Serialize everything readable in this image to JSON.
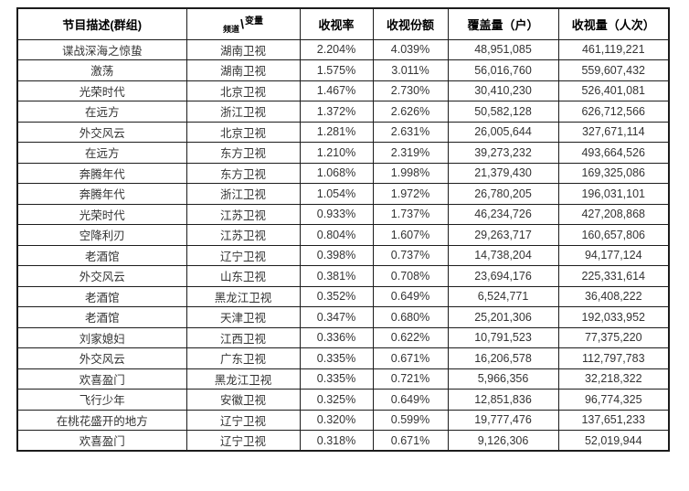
{
  "colors": {
    "background": "#ffffff",
    "border": "#1c1c1c",
    "header_text": "#000000",
    "body_text": "#333333"
  },
  "table": {
    "headers": {
      "program": "节目描述(群组)",
      "channel": "频道",
      "separator": "\\",
      "variable": "变量",
      "rating": "收视率",
      "share": "收视份额",
      "coverage": "覆盖量（户）",
      "viewership": "收视量（人次）"
    },
    "rows": [
      {
        "program": "谍战深海之惊蛰",
        "channel": "湖南卫视",
        "rating": "2.204%",
        "share": "4.039%",
        "coverage": "48,951,085",
        "viewership": "461,119,221"
      },
      {
        "program": "激荡",
        "channel": "湖南卫视",
        "rating": "1.575%",
        "share": "3.011%",
        "coverage": "56,016,760",
        "viewership": "559,607,432"
      },
      {
        "program": "光荣时代",
        "channel": "北京卫视",
        "rating": "1.467%",
        "share": "2.730%",
        "coverage": "30,410,230",
        "viewership": "526,401,081"
      },
      {
        "program": "在远方",
        "channel": "浙江卫视",
        "rating": "1.372%",
        "share": "2.626%",
        "coverage": "50,582,128",
        "viewership": "626,712,566"
      },
      {
        "program": "外交风云",
        "channel": "北京卫视",
        "rating": "1.281%",
        "share": "2.631%",
        "coverage": "26,005,644",
        "viewership": "327,671,114"
      },
      {
        "program": "在远方",
        "channel": "东方卫视",
        "rating": "1.210%",
        "share": "2.319%",
        "coverage": "39,273,232",
        "viewership": "493,664,526"
      },
      {
        "program": "奔腾年代",
        "channel": "东方卫视",
        "rating": "1.068%",
        "share": "1.998%",
        "coverage": "21,379,430",
        "viewership": "169,325,086"
      },
      {
        "program": "奔腾年代",
        "channel": "浙江卫视",
        "rating": "1.054%",
        "share": "1.972%",
        "coverage": "26,780,205",
        "viewership": "196,031,101"
      },
      {
        "program": "光荣时代",
        "channel": "江苏卫视",
        "rating": "0.933%",
        "share": "1.737%",
        "coverage": "46,234,726",
        "viewership": "427,208,868"
      },
      {
        "program": "空降利刃",
        "channel": "江苏卫视",
        "rating": "0.804%",
        "share": "1.607%",
        "coverage": "29,263,717",
        "viewership": "160,657,806"
      },
      {
        "program": "老酒馆",
        "channel": "辽宁卫视",
        "rating": "0.398%",
        "share": "0.737%",
        "coverage": "14,738,204",
        "viewership": "94,177,124"
      },
      {
        "program": "外交风云",
        "channel": "山东卫视",
        "rating": "0.381%",
        "share": "0.708%",
        "coverage": "23,694,176",
        "viewership": "225,331,614"
      },
      {
        "program": "老酒馆",
        "channel": "黑龙江卫视",
        "rating": "0.352%",
        "share": "0.649%",
        "coverage": "6,524,771",
        "viewership": "36,408,222"
      },
      {
        "program": "老酒馆",
        "channel": "天津卫视",
        "rating": "0.347%",
        "share": "0.680%",
        "coverage": "25,201,306",
        "viewership": "192,033,952"
      },
      {
        "program": "刘家媳妇",
        "channel": "江西卫视",
        "rating": "0.336%",
        "share": "0.622%",
        "coverage": "10,791,523",
        "viewership": "77,375,220"
      },
      {
        "program": "外交风云",
        "channel": "广东卫视",
        "rating": "0.335%",
        "share": "0.671%",
        "coverage": "16,206,578",
        "viewership": "112,797,783"
      },
      {
        "program": "欢喜盈门",
        "channel": "黑龙江卫视",
        "rating": "0.335%",
        "share": "0.721%",
        "coverage": "5,966,356",
        "viewership": "32,218,322"
      },
      {
        "program": "飞行少年",
        "channel": "安徽卫视",
        "rating": "0.325%",
        "share": "0.649%",
        "coverage": "12,851,836",
        "viewership": "96,774,325"
      },
      {
        "program": "在桃花盛开的地方",
        "channel": "辽宁卫视",
        "rating": "0.320%",
        "share": "0.599%",
        "coverage": "19,777,476",
        "viewership": "137,651,233"
      },
      {
        "program": "欢喜盈门",
        "channel": "辽宁卫视",
        "rating": "0.318%",
        "share": "0.671%",
        "coverage": "9,126,306",
        "viewership": "52,019,944"
      }
    ]
  },
  "chart_data": {
    "type": "table",
    "title": "",
    "columns": [
      "节目描述(群组)",
      "频道\\变量",
      "收视率",
      "收视份额",
      "覆盖量（户）",
      "收视量（人次）"
    ],
    "rows": [
      [
        "谍战深海之惊蛰",
        "湖南卫视",
        "2.204%",
        "4.039%",
        "48,951,085",
        "461,119,221"
      ],
      [
        "激荡",
        "湖南卫视",
        "1.575%",
        "3.011%",
        "56,016,760",
        "559,607,432"
      ],
      [
        "光荣时代",
        "北京卫视",
        "1.467%",
        "2.730%",
        "30,410,230",
        "526,401,081"
      ],
      [
        "在远方",
        "浙江卫视",
        "1.372%",
        "2.626%",
        "50,582,128",
        "626,712,566"
      ],
      [
        "外交风云",
        "北京卫视",
        "1.281%",
        "2.631%",
        "26,005,644",
        "327,671,114"
      ],
      [
        "在远方",
        "东方卫视",
        "1.210%",
        "2.319%",
        "39,273,232",
        "493,664,526"
      ],
      [
        "奔腾年代",
        "东方卫视",
        "1.068%",
        "1.998%",
        "21,379,430",
        "169,325,086"
      ],
      [
        "奔腾年代",
        "浙江卫视",
        "1.054%",
        "1.972%",
        "26,780,205",
        "196,031,101"
      ],
      [
        "光荣时代",
        "江苏卫视",
        "0.933%",
        "1.737%",
        "46,234,726",
        "427,208,868"
      ],
      [
        "空降利刃",
        "江苏卫视",
        "0.804%",
        "1.607%",
        "29,263,717",
        "160,657,806"
      ],
      [
        "老酒馆",
        "辽宁卫视",
        "0.398%",
        "0.737%",
        "14,738,204",
        "94,177,124"
      ],
      [
        "外交风云",
        "山东卫视",
        "0.381%",
        "0.708%",
        "23,694,176",
        "225,331,614"
      ],
      [
        "老酒馆",
        "黑龙江卫视",
        "0.352%",
        "0.649%",
        "6,524,771",
        "36,408,222"
      ],
      [
        "老酒馆",
        "天津卫视",
        "0.347%",
        "0.680%",
        "25,201,306",
        "192,033,952"
      ],
      [
        "刘家媳妇",
        "江西卫视",
        "0.336%",
        "0.622%",
        "10,791,523",
        "77,375,220"
      ],
      [
        "外交风云",
        "广东卫视",
        "0.335%",
        "0.671%",
        "16,206,578",
        "112,797,783"
      ],
      [
        "欢喜盈门",
        "黑龙江卫视",
        "0.335%",
        "0.721%",
        "5,966,356",
        "32,218,322"
      ],
      [
        "飞行少年",
        "安徽卫视",
        "0.325%",
        "0.649%",
        "12,851,836",
        "96,774,325"
      ],
      [
        "在桃花盛开的地方",
        "辽宁卫视",
        "0.320%",
        "0.599%",
        "19,777,476",
        "137,651,233"
      ],
      [
        "欢喜盈门",
        "辽宁卫视",
        "0.318%",
        "0.671%",
        "9,126,306",
        "52,019,944"
      ]
    ]
  }
}
